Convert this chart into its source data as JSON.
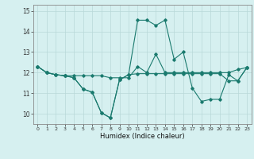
{
  "title": "",
  "xlabel": "Humidex (Indice chaleur)",
  "bg_color": "#d6f0f0",
  "line_color": "#1a7a6e",
  "grid_color": "#b8d8d8",
  "xlim": [
    -0.5,
    23.5
  ],
  "ylim": [
    9.5,
    15.3
  ],
  "yticks": [
    10,
    11,
    12,
    13,
    14,
    15
  ],
  "xticks": [
    0,
    1,
    2,
    3,
    4,
    5,
    6,
    7,
    8,
    9,
    10,
    11,
    12,
    13,
    14,
    15,
    16,
    17,
    18,
    19,
    20,
    21,
    22,
    23
  ],
  "series": [
    [
      12.3,
      12.0,
      11.9,
      11.85,
      11.75,
      11.2,
      11.05,
      10.05,
      9.8,
      11.65,
      11.9,
      14.55,
      14.55,
      14.3,
      14.55,
      12.65,
      13.0,
      11.25,
      10.6,
      10.7,
      10.7,
      11.9,
      11.6,
      12.25
    ],
    [
      12.3,
      12.0,
      11.9,
      11.85,
      11.85,
      11.85,
      11.85,
      11.85,
      11.75,
      11.75,
      11.75,
      12.3,
      12.0,
      12.9,
      12.0,
      12.0,
      12.0,
      12.0,
      12.0,
      12.0,
      12.0,
      12.0,
      12.15,
      12.25
    ],
    [
      12.3,
      12.0,
      11.9,
      11.85,
      11.75,
      11.2,
      11.05,
      10.05,
      9.8,
      11.65,
      11.9,
      11.95,
      11.95,
      11.95,
      11.95,
      11.95,
      11.95,
      11.95,
      11.95,
      11.95,
      11.95,
      11.6,
      11.6,
      12.25
    ]
  ]
}
